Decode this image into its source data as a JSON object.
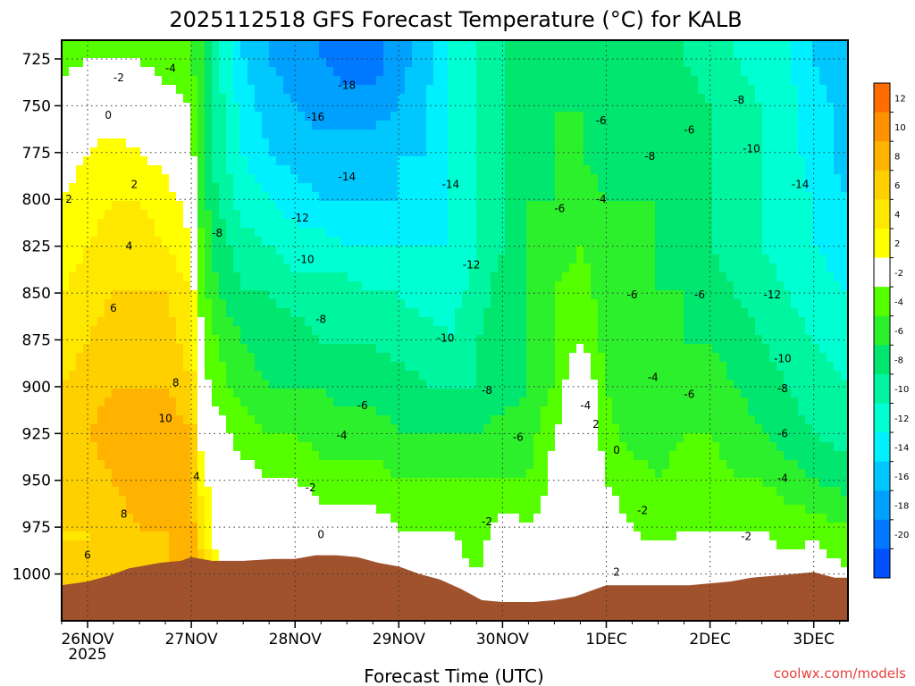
{
  "chart_data": {
    "type": "heatmap",
    "title": "2025112518 GFS Forecast Temperature (°C) for KALB",
    "xlabel": "Forecast Time (UTC)",
    "ylabel": "",
    "y_axis": "pressure (hPa), inverted",
    "ylim": [
      1025,
      715
    ],
    "y_ticks": [
      725,
      750,
      775,
      800,
      825,
      850,
      875,
      900,
      925,
      950,
      975,
      1000
    ],
    "x_ticks": [
      "26NOV",
      "27NOV",
      "28NOV",
      "29NOV",
      "30NOV",
      "1DEC",
      "2DEC",
      "3DEC"
    ],
    "x_tick_sublabel": "2025",
    "xlim_days": [
      25.75,
      33.33
    ],
    "colorbar": {
      "ticks": [
        12,
        10,
        8,
        6,
        4,
        2,
        -2,
        -4,
        -6,
        -8,
        -10,
        -12,
        -14,
        -16,
        -18,
        -20
      ],
      "colors": [
        "#ff6c00",
        "#ff9000",
        "#ffb200",
        "#ffd000",
        "#ffe800",
        "#ffff00",
        "#ffffff",
        "#55ff00",
        "#2df02d",
        "#00e66e",
        "#00f5a0",
        "#00ffd2",
        "#00f0ff",
        "#00c8ff",
        "#00a0ff",
        "#0078ff",
        "#0050ff"
      ]
    },
    "temperature_grid": {
      "x_days": [
        25.75,
        26.0,
        26.25,
        26.5,
        26.75,
        27.0,
        27.1,
        27.25,
        27.5,
        27.75,
        28.0,
        28.25,
        28.5,
        28.75,
        29.0,
        29.25,
        29.5,
        29.75,
        30.0,
        30.25,
        30.5,
        30.75,
        31.0,
        31.25,
        31.5,
        31.75,
        32.0,
        32.25,
        32.5,
        32.75,
        33.0,
        33.33
      ],
      "p_levels": [
        715,
        725,
        750,
        775,
        800,
        825,
        850,
        875,
        900,
        925,
        950,
        975,
        1000,
        1025
      ],
      "rows": [
        [
          -3,
          -3,
          -3,
          -3,
          -4,
          -4,
          -6,
          -10,
          -14,
          -16,
          -17,
          -18,
          -19,
          -19,
          -17,
          -15,
          -12,
          -10,
          -8,
          -7,
          -7,
          -6,
          -7,
          -7,
          -7,
          -8,
          -9,
          -10,
          -11,
          -12,
          -14,
          -16
        ],
        [
          -3,
          -2,
          -2,
          -2,
          -3,
          -4,
          -6,
          -10,
          -14,
          -16,
          -17,
          -18,
          -19,
          -19,
          -17,
          -15,
          -12,
          -10,
          -8,
          -7,
          -7,
          -6,
          -7,
          -7,
          -7,
          -8,
          -9,
          -10,
          -11,
          -12,
          -14,
          -16
        ],
        [
          0,
          1,
          0,
          0,
          -1,
          -2,
          -5,
          -9,
          -13,
          -15,
          -16,
          -17,
          -17,
          -17,
          -16,
          -14,
          -12,
          -10,
          -8,
          -7,
          -6,
          -6,
          -7,
          -7,
          -7,
          -7,
          -8,
          -9,
          -10,
          -11,
          -13,
          -15
        ],
        [
          1,
          2,
          3,
          2,
          1,
          -1,
          -5,
          -9,
          -12,
          -14,
          -15,
          -15,
          -15,
          -15,
          -14,
          -14,
          -12,
          -10,
          -8,
          -7,
          -6,
          -6,
          -7,
          -7,
          -6,
          -7,
          -8,
          -9,
          -10,
          -11,
          -13,
          -15
        ],
        [
          2,
          3,
          4,
          4,
          3,
          1,
          -5,
          -8,
          -11,
          -12,
          -13,
          -14,
          -14,
          -14,
          -14,
          -13,
          -12,
          -10,
          -8,
          -6,
          -6,
          -5,
          -6,
          -6,
          -6,
          -7,
          -8,
          -9,
          -10,
          -11,
          -12,
          -14
        ],
        [
          3,
          4,
          5,
          5,
          4,
          2,
          -4,
          -7,
          -9,
          -10,
          -11,
          -11,
          -12,
          -12,
          -12,
          -12,
          -12,
          -10,
          -8,
          -6,
          -5,
          -4,
          -5,
          -5,
          -6,
          -7,
          -8,
          -9,
          -10,
          -11,
          -12,
          -13
        ],
        [
          4,
          5,
          6,
          6,
          6,
          4,
          -3,
          -6,
          -8,
          -8,
          -9,
          -9,
          -9,
          -10,
          -10,
          -11,
          -11,
          -9,
          -7,
          -6,
          -4,
          -3,
          -5,
          -6,
          -6,
          -6,
          -7,
          -8,
          -9,
          -10,
          -11,
          -12
        ],
        [
          5,
          6,
          7,
          7,
          7,
          5,
          -2,
          -4,
          -6,
          -7,
          -7,
          -8,
          -8,
          -8,
          -9,
          -9,
          -10,
          -8,
          -7,
          -6,
          -4,
          -2,
          -5,
          -6,
          -6,
          -6,
          -6,
          -7,
          -8,
          -9,
          -10,
          -11
        ],
        [
          6,
          7,
          8,
          8,
          8,
          6,
          -1,
          -3,
          -5,
          -6,
          -6,
          -6,
          -7,
          -7,
          -7,
          -8,
          -8,
          -8,
          -7,
          -6,
          -4,
          1,
          -4,
          -6,
          -6,
          -5,
          -5,
          -6,
          -7,
          -8,
          -9,
          -10
        ],
        [
          6,
          8,
          9,
          10,
          10,
          8,
          1,
          -1,
          -3,
          -4,
          -4,
          -5,
          -5,
          -5,
          -6,
          -6,
          -6,
          -6,
          -5,
          -5,
          -2,
          1,
          -3,
          -5,
          -5,
          -4,
          -4,
          -5,
          -6,
          -7,
          -8,
          -9
        ],
        [
          6,
          7,
          8,
          9,
          9,
          9,
          3,
          0,
          -1,
          -2,
          -2,
          -3,
          -3,
          -3,
          -4,
          -4,
          -4,
          -4,
          -4,
          -4,
          -1,
          0,
          -2,
          -3,
          -4,
          -3,
          -3,
          -4,
          -4,
          -5,
          -6,
          -7
        ],
        [
          6,
          6,
          7,
          8,
          8,
          9,
          5,
          1,
          0,
          0,
          1,
          -1,
          -1,
          -1,
          -2,
          -2,
          -2,
          -3,
          -1,
          -2,
          -1,
          1,
          -1,
          -2,
          -3,
          -2,
          -2,
          -2,
          -2,
          -3,
          -3,
          -4
        ],
        [
          6,
          6,
          7,
          7,
          8,
          9,
          7,
          2,
          1,
          2,
          1,
          0,
          0,
          0,
          -1,
          -1,
          -1,
          -2,
          -1,
          -1,
          0,
          2,
          0,
          -1,
          0,
          -1,
          0,
          -1,
          -1,
          -1,
          0,
          -2
        ],
        [
          6,
          6,
          7,
          7,
          8,
          9,
          7,
          2,
          1,
          2,
          1,
          0,
          0,
          0,
          -1,
          -1,
          -1,
          -2,
          -1,
          -1,
          0,
          2,
          0,
          -1,
          0,
          -1,
          0,
          -1,
          -1,
          -1,
          0,
          -2
        ]
      ]
    },
    "surface_pressure": {
      "x_days": [
        25.75,
        26.0,
        26.2,
        26.4,
        26.5,
        26.7,
        26.9,
        27.0,
        27.2,
        27.5,
        27.8,
        28.0,
        28.2,
        28.4,
        28.6,
        28.8,
        29.0,
        29.2,
        29.4,
        29.6,
        29.8,
        30.0,
        30.3,
        30.5,
        30.7,
        30.9,
        31.0,
        31.2,
        31.4,
        31.6,
        31.8,
        32.0,
        32.2,
        32.4,
        32.6,
        32.8,
        33.0,
        33.2,
        33.33
      ],
      "p": [
        1006,
        1004,
        1001,
        997,
        996,
        994,
        993,
        991,
        993,
        993,
        992,
        992,
        990,
        990,
        991,
        994,
        996,
        1000,
        1003,
        1008,
        1014,
        1015,
        1015,
        1014,
        1012,
        1008,
        1006,
        1006,
        1006,
        1006,
        1006,
        1005,
        1004,
        1002,
        1001,
        1000,
        999,
        1002,
        1002
      ]
    },
    "contour_labels": [
      {
        "text": "-2",
        "day": 26.3,
        "p": 735
      },
      {
        "text": "-4",
        "day": 26.8,
        "p": 730
      },
      {
        "text": "0",
        "day": 26.2,
        "p": 755
      },
      {
        "text": "2",
        "day": 25.82,
        "p": 800
      },
      {
        "text": "2",
        "day": 26.45,
        "p": 792
      },
      {
        "text": "4",
        "day": 26.4,
        "p": 825
      },
      {
        "text": "6",
        "day": 26.25,
        "p": 858
      },
      {
        "text": "8",
        "day": 26.85,
        "p": 898
      },
      {
        "text": "10",
        "day": 26.75,
        "p": 917
      },
      {
        "text": "8",
        "day": 26.35,
        "p": 968
      },
      {
        "text": "6",
        "day": 26.0,
        "p": 990
      },
      {
        "text": "4",
        "day": 27.05,
        "p": 948
      },
      {
        "text": "-8",
        "day": 27.25,
        "p": 818
      },
      {
        "text": "-18",
        "day": 28.5,
        "p": 739
      },
      {
        "text": "-16",
        "day": 28.2,
        "p": 756
      },
      {
        "text": "-14",
        "day": 28.5,
        "p": 788
      },
      {
        "text": "-14",
        "day": 29.5,
        "p": 792
      },
      {
        "text": "-12",
        "day": 28.05,
        "p": 810
      },
      {
        "text": "-10",
        "day": 28.1,
        "p": 832
      },
      {
        "text": "-8",
        "day": 28.25,
        "p": 864
      },
      {
        "text": "-6",
        "day": 28.65,
        "p": 910
      },
      {
        "text": "-4",
        "day": 28.45,
        "p": 926
      },
      {
        "text": "-2",
        "day": 28.15,
        "p": 954
      },
      {
        "text": "0",
        "day": 28.25,
        "p": 979
      },
      {
        "text": "-12",
        "day": 29.7,
        "p": 835
      },
      {
        "text": "-10",
        "day": 29.45,
        "p": 874
      },
      {
        "text": "-8",
        "day": 29.85,
        "p": 902
      },
      {
        "text": "-6",
        "day": 30.15,
        "p": 927
      },
      {
        "text": "-2",
        "day": 29.85,
        "p": 972
      },
      {
        "text": "-6",
        "day": 30.55,
        "p": 805
      },
      {
        "text": "-4",
        "day": 30.95,
        "p": 800
      },
      {
        "text": "-6",
        "day": 30.95,
        "p": 758
      },
      {
        "text": "-8",
        "day": 31.42,
        "p": 777
      },
      {
        "text": "-6",
        "day": 31.25,
        "p": 851
      },
      {
        "text": "-4",
        "day": 31.45,
        "p": 895
      },
      {
        "text": "-4",
        "day": 30.8,
        "p": 910
      },
      {
        "text": "2",
        "day": 30.9,
        "p": 920
      },
      {
        "text": "0",
        "day": 31.1,
        "p": 934
      },
      {
        "text": "-2",
        "day": 31.35,
        "p": 966
      },
      {
        "text": "2",
        "day": 31.1,
        "p": 999
      },
      {
        "text": "-6",
        "day": 31.8,
        "p": 763
      },
      {
        "text": "-6",
        "day": 31.9,
        "p": 851
      },
      {
        "text": "-6",
        "day": 31.8,
        "p": 904
      },
      {
        "text": "-8",
        "day": 32.28,
        "p": 747
      },
      {
        "text": "-10",
        "day": 32.4,
        "p": 773
      },
      {
        "text": "-14",
        "day": 32.87,
        "p": 792
      },
      {
        "text": "-12",
        "day": 32.6,
        "p": 851
      },
      {
        "text": "-10",
        "day": 32.7,
        "p": 885
      },
      {
        "text": "-8",
        "day": 32.7,
        "p": 901
      },
      {
        "text": "-6",
        "day": 32.7,
        "p": 925
      },
      {
        "text": "-4",
        "day": 32.7,
        "p": 949
      },
      {
        "text": "-2",
        "day": 32.35,
        "p": 980
      }
    ],
    "legend": "colorbar-right",
    "grid": true
  },
  "footer": {
    "credit": "coolwx.com/models"
  }
}
